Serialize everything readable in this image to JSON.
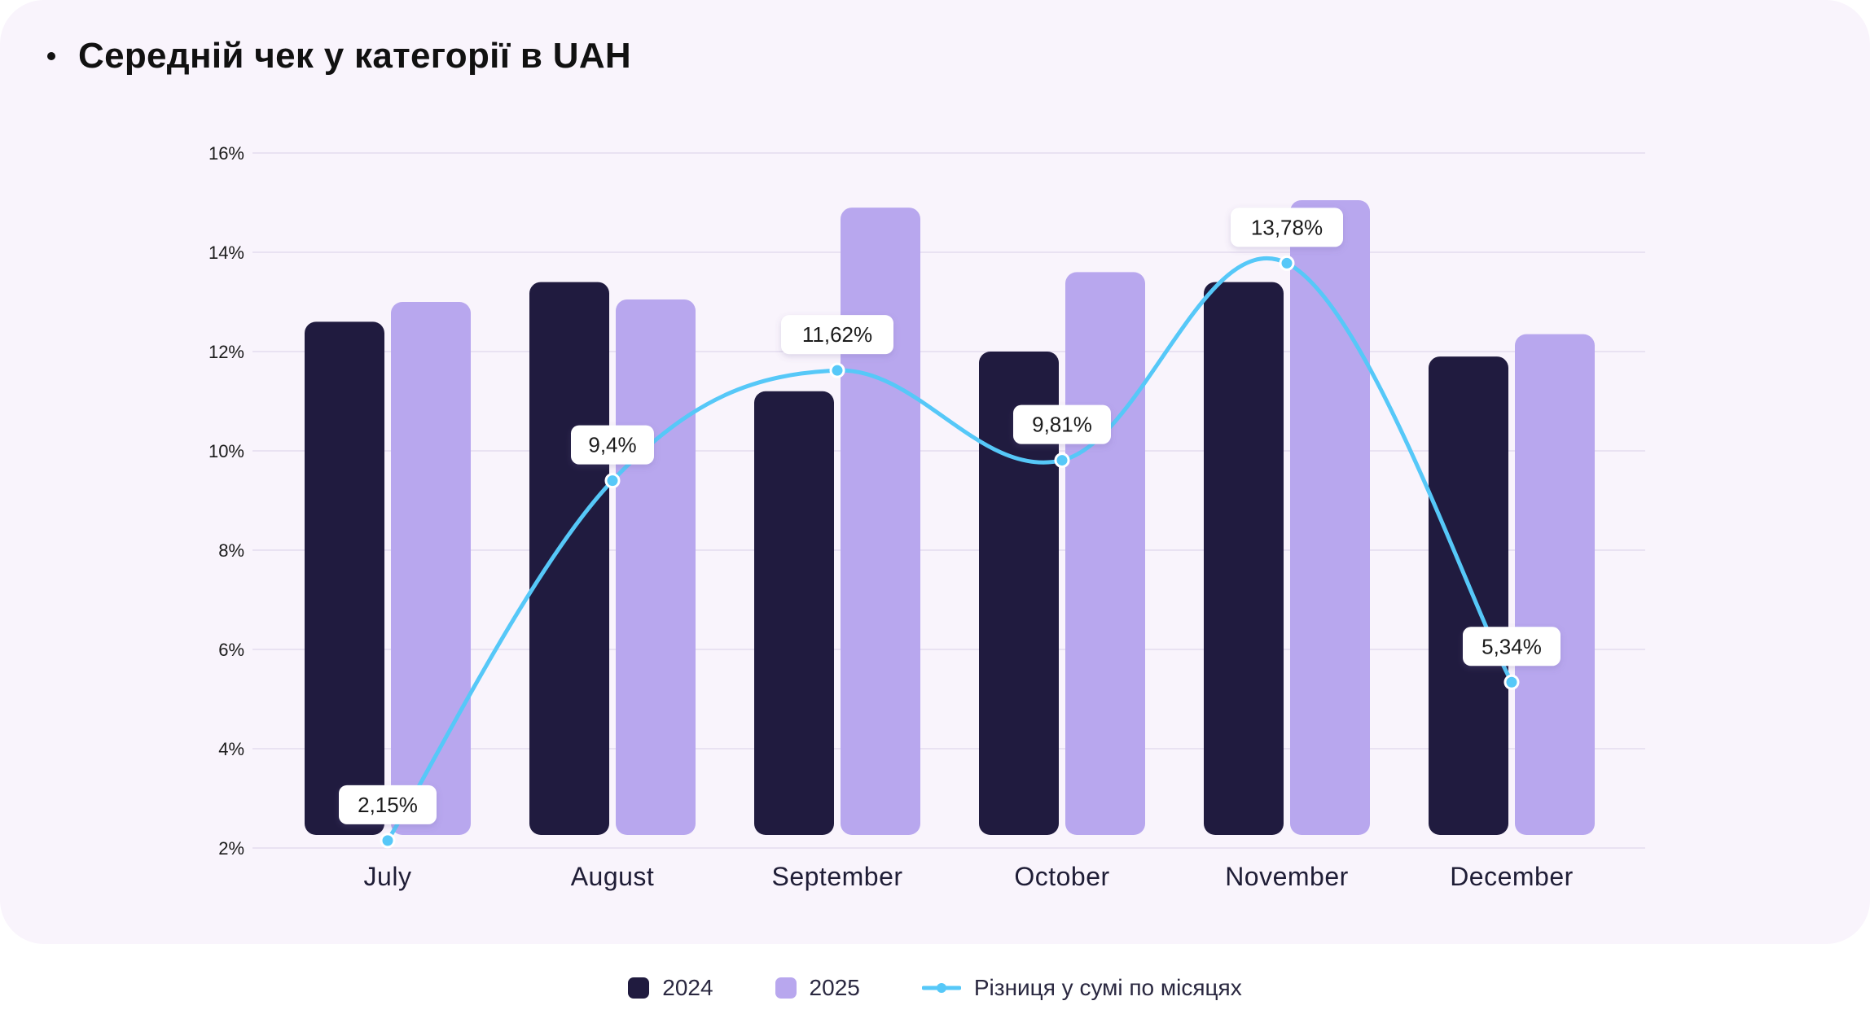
{
  "title": "Середній чек у категорії в UAH",
  "colors": {
    "series_2024": "#201b3f",
    "series_2025": "#b8a7ee",
    "line": "#56c8f8",
    "grid": "#e9e2f2",
    "text": "#1b1b1b"
  },
  "chart_data": {
    "type": "bar",
    "title": "Середній чек у категорії в UAH",
    "categories": [
      "July",
      "August",
      "September",
      "October",
      "November",
      "December"
    ],
    "ylim": [
      2,
      16
    ],
    "yticks": [
      "2%",
      "4%",
      "6%",
      "8%",
      "10%",
      "12%",
      "14%",
      "16%"
    ],
    "ytick_values": [
      2,
      4,
      6,
      8,
      10,
      12,
      14,
      16
    ],
    "grid": true,
    "series": [
      {
        "name": "2024",
        "kind": "bar",
        "values": [
          12.6,
          13.4,
          11.2,
          12.0,
          13.4,
          11.9
        ]
      },
      {
        "name": "2025",
        "kind": "bar",
        "values": [
          13.0,
          13.05,
          14.9,
          13.6,
          15.05,
          12.35
        ]
      },
      {
        "name": "Різниця у сумі по місяцях",
        "kind": "line",
        "values": [
          2.15,
          9.4,
          11.62,
          9.81,
          13.78,
          5.34
        ],
        "labels": [
          "2,15%",
          "9,4%",
          "11,62%",
          "9,81%",
          "13,78%",
          "5,34%"
        ]
      }
    ],
    "legend_position": "bottom-center"
  },
  "legend": {
    "item_2024": "2024",
    "item_2025": "2025",
    "item_line": "Різниця у сумі по місяцях"
  }
}
